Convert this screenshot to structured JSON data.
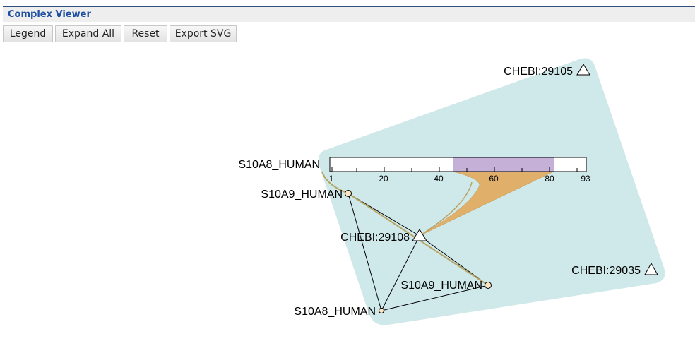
{
  "header": {
    "title": "Complex Viewer"
  },
  "toolbar": {
    "legend_label": "Legend",
    "expand_all_label": "Expand All",
    "reset_label": "Reset",
    "export_svg_label": "Export SVG"
  },
  "colors": {
    "complex_fill": "#cfe8e9",
    "highlight_region": "#c5b1d8",
    "crosslink_fill": "#e0af6a",
    "link_line": "#b5a463",
    "node_fill": "#fde6c4",
    "header_title": "#1f4fa3"
  },
  "graph": {
    "nodes": {
      "chebi_29105": {
        "label": "CHEBI:29105",
        "shape": "triangle"
      },
      "chebi_29108": {
        "label": "CHEBI:29108",
        "shape": "triangle"
      },
      "chebi_29035": {
        "label": "CHEBI:29035",
        "shape": "triangle"
      },
      "s10a8_expanded": {
        "label": "S10A8_HUMAN",
        "shape": "bar"
      },
      "s10a9_upper": {
        "label": "S10A9_HUMAN",
        "shape": "circle"
      },
      "s10a9_lower": {
        "label": "S10A9_HUMAN",
        "shape": "circle"
      },
      "s10a8_lower": {
        "label": "S10A8_HUMAN",
        "shape": "circle"
      }
    },
    "protein_bar": {
      "length": 93,
      "ticks": [
        "1",
        "20",
        "40",
        "60",
        "80",
        "93"
      ],
      "highlight_start": 45,
      "highlight_end": 81
    }
  }
}
